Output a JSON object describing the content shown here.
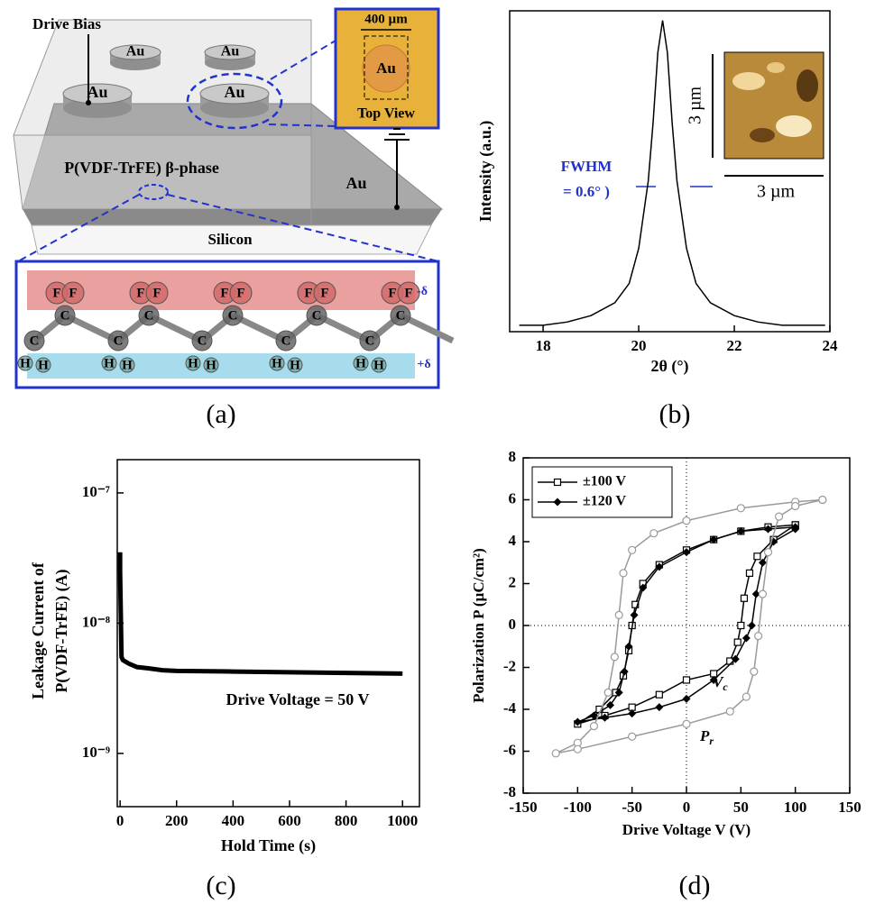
{
  "diagram": {
    "drive_bias": "Drive Bias",
    "electrode": "Au",
    "inset_size": "400 µm",
    "inset_caption": "Top View",
    "film": "P(VDF-TrFE) β-phase",
    "substrate": "Silicon",
    "atoms": {
      "F": "F",
      "C": "C",
      "H": "H"
    },
    "charge_neg": "-δ",
    "charge_pos": "+δ"
  },
  "panel_labels": [
    "(a)",
    "(b)",
    "(c)",
    "(d)"
  ],
  "chart_data": [
    {
      "type": "line",
      "x_label": "2θ (°)",
      "y_label": "Intensity (a.u.)",
      "xlim": [
        17.3,
        24
      ],
      "xticks": [
        18,
        20,
        22,
        24
      ],
      "ylim": [
        0,
        1
      ],
      "series": [
        {
          "color": "#000000",
          "x": [
            17.5,
            18,
            18.5,
            19,
            19.5,
            19.8,
            20.0,
            20.2,
            20.3,
            20.4,
            20.5,
            20.6,
            20.7,
            20.8,
            21.0,
            21.2,
            21.5,
            22,
            22.5,
            23,
            23.9
          ],
          "values": [
            0.02,
            0.02,
            0.03,
            0.05,
            0.09,
            0.15,
            0.26,
            0.47,
            0.65,
            0.87,
            0.97,
            0.87,
            0.65,
            0.47,
            0.26,
            0.15,
            0.09,
            0.05,
            0.03,
            0.02,
            0.02
          ]
        }
      ],
      "annotations": {
        "fwhm": "FWHM",
        "fwhm_value": "= 0.6° )",
        "inset_height": "3 µm",
        "inset_width": "3 µm"
      }
    },
    {
      "type": "line",
      "log_y": true,
      "x_label": "Hold Time (s)",
      "y_label": [
        "Leakage Current of",
        "P(VDF-TrFE) (A)"
      ],
      "xlim": [
        -10,
        1060
      ],
      "xticks": [
        0,
        200,
        400,
        600,
        800,
        1000
      ],
      "ylim": [
        3.9e-10,
        1.8e-07
      ],
      "yticks": [
        {
          "value": 1e-09,
          "label": "10⁻⁹"
        },
        {
          "value": 1e-08,
          "label": "10⁻⁸"
        },
        {
          "value": 1e-07,
          "label": "10⁻⁷"
        }
      ],
      "series": [
        {
          "color": "#000000",
          "x": [
            0,
            0,
            5,
            10,
            30,
            60,
            100,
            150,
            200,
            400,
            600,
            800,
            1000
          ],
          "values": [
            3.5e-08,
            2.5e-08,
            5.5e-09,
            5.2e-09,
            4.9e-09,
            4.6e-09,
            4.5e-09,
            4.35e-09,
            4.3e-09,
            4.25e-09,
            4.2e-09,
            4.15e-09,
            4.1e-09
          ]
        }
      ],
      "annotation": "Drive Voltage = 50 V"
    },
    {
      "type": "line",
      "x_label": "Drive Voltage V (V)",
      "y_label": "Polarization P (µC/cm²)",
      "xlim": [
        -150,
        150
      ],
      "xticks": [
        -150,
        -100,
        -50,
        0,
        50,
        100,
        150
      ],
      "ylim": [
        -8,
        8
      ],
      "yticks": [
        -8,
        -6,
        -4,
        -2,
        0,
        2,
        4,
        6,
        8
      ],
      "zero_lines": true,
      "legend": "upper left",
      "series": [
        {
          "name": "±100 V",
          "color": "#000000",
          "marker": "open-square",
          "x": [
            100,
            75,
            50,
            25,
            0,
            -25,
            -40,
            -47,
            -50,
            -53,
            -58,
            -65,
            -80,
            -100,
            -75,
            -50,
            -25,
            0,
            25,
            40,
            47,
            50,
            53,
            58,
            65,
            80,
            100
          ],
          "values": [
            4.8,
            4.7,
            4.5,
            4.1,
            3.6,
            2.9,
            2.0,
            1.0,
            0,
            -1.2,
            -2.4,
            -3.2,
            -4.0,
            -4.7,
            -4.3,
            -3.9,
            -3.3,
            -2.6,
            -2.3,
            -1.7,
            -0.8,
            0,
            1.3,
            2.5,
            3.3,
            4.1,
            4.8
          ]
        },
        {
          "name": "±120 V",
          "color": "#000000",
          "marker": "filled-diamond",
          "x": [
            100,
            75,
            50,
            25,
            0,
            -25,
            -40,
            -48,
            -53,
            -57,
            -62,
            -70,
            -85,
            -100,
            -75,
            -50,
            -25,
            0,
            25,
            45,
            55,
            60,
            64,
            70,
            80,
            100
          ],
          "values": [
            4.7,
            4.6,
            4.5,
            4.1,
            3.5,
            2.8,
            1.8,
            0.5,
            -1,
            -2.2,
            -3.2,
            -3.8,
            -4.3,
            -4.6,
            -4.4,
            -4.2,
            -3.9,
            -3.5,
            -2.6,
            -1.6,
            -0.6,
            0,
            1.5,
            3.0,
            4.0,
            4.6
          ]
        },
        {
          "color": "#9a9a9a",
          "marker": "open-circle",
          "x": [
            125,
            100,
            50,
            0,
            -30,
            -50,
            -58,
            -62,
            -66,
            -72,
            -85,
            -100,
            -120,
            -100,
            -50,
            0,
            40,
            55,
            62,
            66,
            70,
            75,
            85,
            100,
            125
          ],
          "values": [
            6,
            5.9,
            5.6,
            5.0,
            4.4,
            3.6,
            2.5,
            0.5,
            -1.5,
            -3.2,
            -4.8,
            -5.6,
            -6.1,
            -5.9,
            -5.3,
            -4.7,
            -4.1,
            -3.4,
            -2.2,
            -0.5,
            1.5,
            3.5,
            5.2,
            5.7,
            6
          ]
        }
      ],
      "annotations": [
        {
          "text": "V",
          "sub": "c"
        },
        {
          "text": "P",
          "sub": "r"
        }
      ]
    }
  ]
}
